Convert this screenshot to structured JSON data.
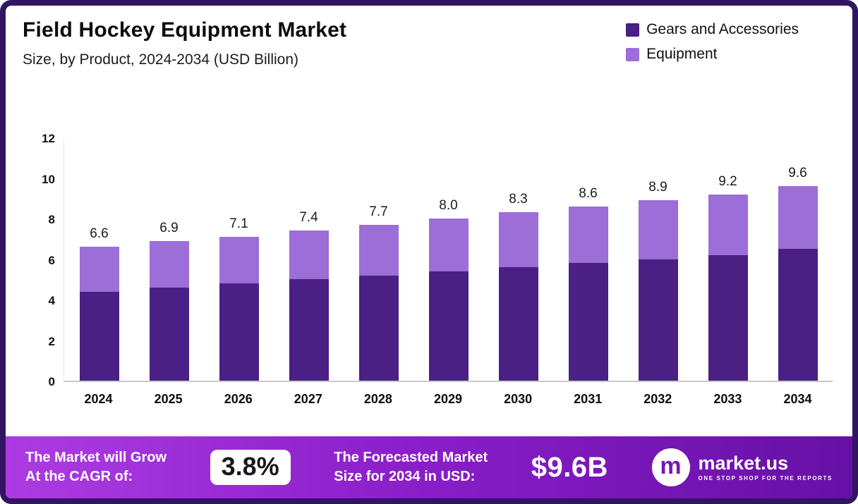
{
  "chart_data": {
    "type": "bar",
    "stacked": true,
    "title": "Field Hockey Equipment Market",
    "subtitle": "Size, by Product, 2024-2034 (USD Billion)",
    "categories": [
      "2024",
      "2025",
      "2026",
      "2027",
      "2028",
      "2029",
      "2030",
      "2031",
      "2032",
      "2033",
      "2034"
    ],
    "series": [
      {
        "name": "Gears and Accessories",
        "color": "#4a2084",
        "values": [
          4.4,
          4.6,
          4.8,
          5.0,
          5.2,
          5.4,
          5.6,
          5.8,
          6.0,
          6.2,
          6.5
        ]
      },
      {
        "name": "Equipment",
        "color": "#9d6dd8",
        "values": [
          2.2,
          2.3,
          2.3,
          2.4,
          2.5,
          2.6,
          2.7,
          2.8,
          2.9,
          3.0,
          3.1
        ]
      }
    ],
    "totals_labels": [
      "6.6",
      "6.9",
      "7.1",
      "7.4",
      "7.7",
      "8.0",
      "8.3",
      "8.6",
      "8.9",
      "9.2",
      "9.6"
    ],
    "ylim": [
      0,
      12
    ],
    "yticks": [
      0,
      2,
      4,
      6,
      8,
      10,
      12
    ],
    "grid": false,
    "legend_position": "top-right"
  },
  "footer": {
    "growth_label_line1": "The Market will Grow",
    "growth_label_line2": "At the CAGR of:",
    "cagr_value": "3.8%",
    "forecast_label_line1": "The Forecasted Market",
    "forecast_label_line2": "Size for 2034 in USD:",
    "forecast_value": "$9.6B",
    "brand_name": "market.us",
    "brand_tagline": "ONE STOP SHOP FOR THE REPORTS",
    "brand_icon_glyph": "m"
  },
  "colors": {
    "page_border": "#311561",
    "banner_gradient_start": "#ad3be2",
    "banner_gradient_mid": "#8a1ec9",
    "banner_gradient_end": "#6610a6",
    "axis_line": "#c9c9c9",
    "series_dark": "#4a2084",
    "series_light": "#9d6dd8"
  }
}
